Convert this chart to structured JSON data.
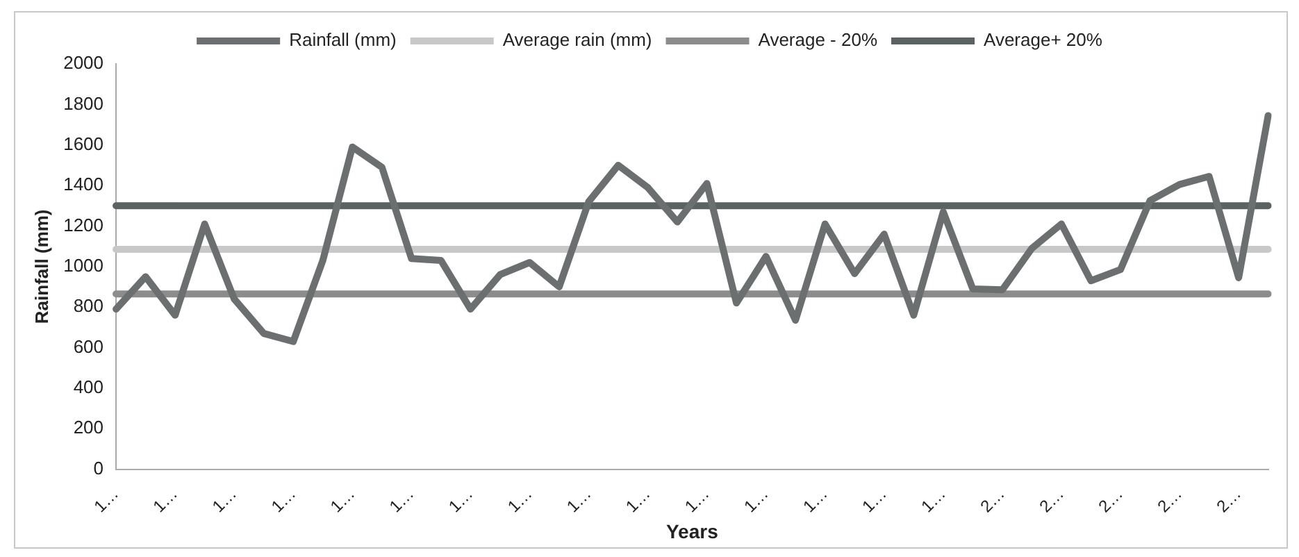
{
  "chart_data": {
    "type": "line",
    "xlabel": "Years",
    "ylabel": "Rainfall (mm)",
    "categories": [
      "1…",
      null,
      "1…",
      null,
      "1…",
      null,
      "1…",
      null,
      "1…",
      null,
      "1…",
      null,
      "1…",
      null,
      "1…",
      null,
      "1…",
      null,
      "1…",
      null,
      "1…",
      null,
      "1…",
      null,
      "1…",
      null,
      "1…",
      null,
      "1…",
      null,
      "2…",
      null,
      "2…",
      null,
      "2…",
      null,
      "2…",
      null,
      "2…",
      null
    ],
    "series": [
      {
        "name": "Rainfall (mm)",
        "color": "#6b6f6f",
        "values": [
          790,
          950,
          760,
          1210,
          840,
          670,
          630,
          1030,
          1590,
          1490,
          1040,
          1030,
          790,
          960,
          1020,
          900,
          1320,
          1500,
          1390,
          1220,
          1410,
          820,
          1050,
          735,
          1210,
          965,
          1160,
          760,
          1270,
          890,
          885,
          1090,
          1210,
          930,
          985,
          1325,
          1405,
          1445,
          945,
          1745
        ]
      },
      {
        "name": "Average rain (mm)",
        "color": "#c8c8c8",
        "values": [
          1085,
          1085,
          1085,
          1085,
          1085,
          1085,
          1085,
          1085,
          1085,
          1085,
          1085,
          1085,
          1085,
          1085,
          1085,
          1085,
          1085,
          1085,
          1085,
          1085,
          1085,
          1085,
          1085,
          1085,
          1085,
          1085,
          1085,
          1085,
          1085,
          1085,
          1085,
          1085,
          1085,
          1085,
          1085,
          1085,
          1085,
          1085,
          1085,
          1085
        ]
      },
      {
        "name": "Average - 20%",
        "color": "#8c8c8c",
        "values": [
          865,
          865,
          865,
          865,
          865,
          865,
          865,
          865,
          865,
          865,
          865,
          865,
          865,
          865,
          865,
          865,
          865,
          865,
          865,
          865,
          865,
          865,
          865,
          865,
          865,
          865,
          865,
          865,
          865,
          865,
          865,
          865,
          865,
          865,
          865,
          865,
          865,
          865,
          865,
          865
        ]
      },
      {
        "name": "Average+ 20%",
        "color": "#5a6361",
        "values": [
          1300,
          1300,
          1300,
          1300,
          1300,
          1300,
          1300,
          1300,
          1300,
          1300,
          1300,
          1300,
          1300,
          1300,
          1300,
          1300,
          1300,
          1300,
          1300,
          1300,
          1300,
          1300,
          1300,
          1300,
          1300,
          1300,
          1300,
          1300,
          1300,
          1300,
          1300,
          1300,
          1300,
          1300,
          1300,
          1300,
          1300,
          1300,
          1300,
          1300
        ]
      }
    ],
    "ylim": [
      0,
      2000
    ],
    "yticks": [
      0,
      200,
      400,
      600,
      800,
      1000,
      1200,
      1400,
      1600,
      1800,
      2000
    ],
    "grid": false,
    "legend": "top",
    "marker": "none",
    "line_style": "solid"
  }
}
